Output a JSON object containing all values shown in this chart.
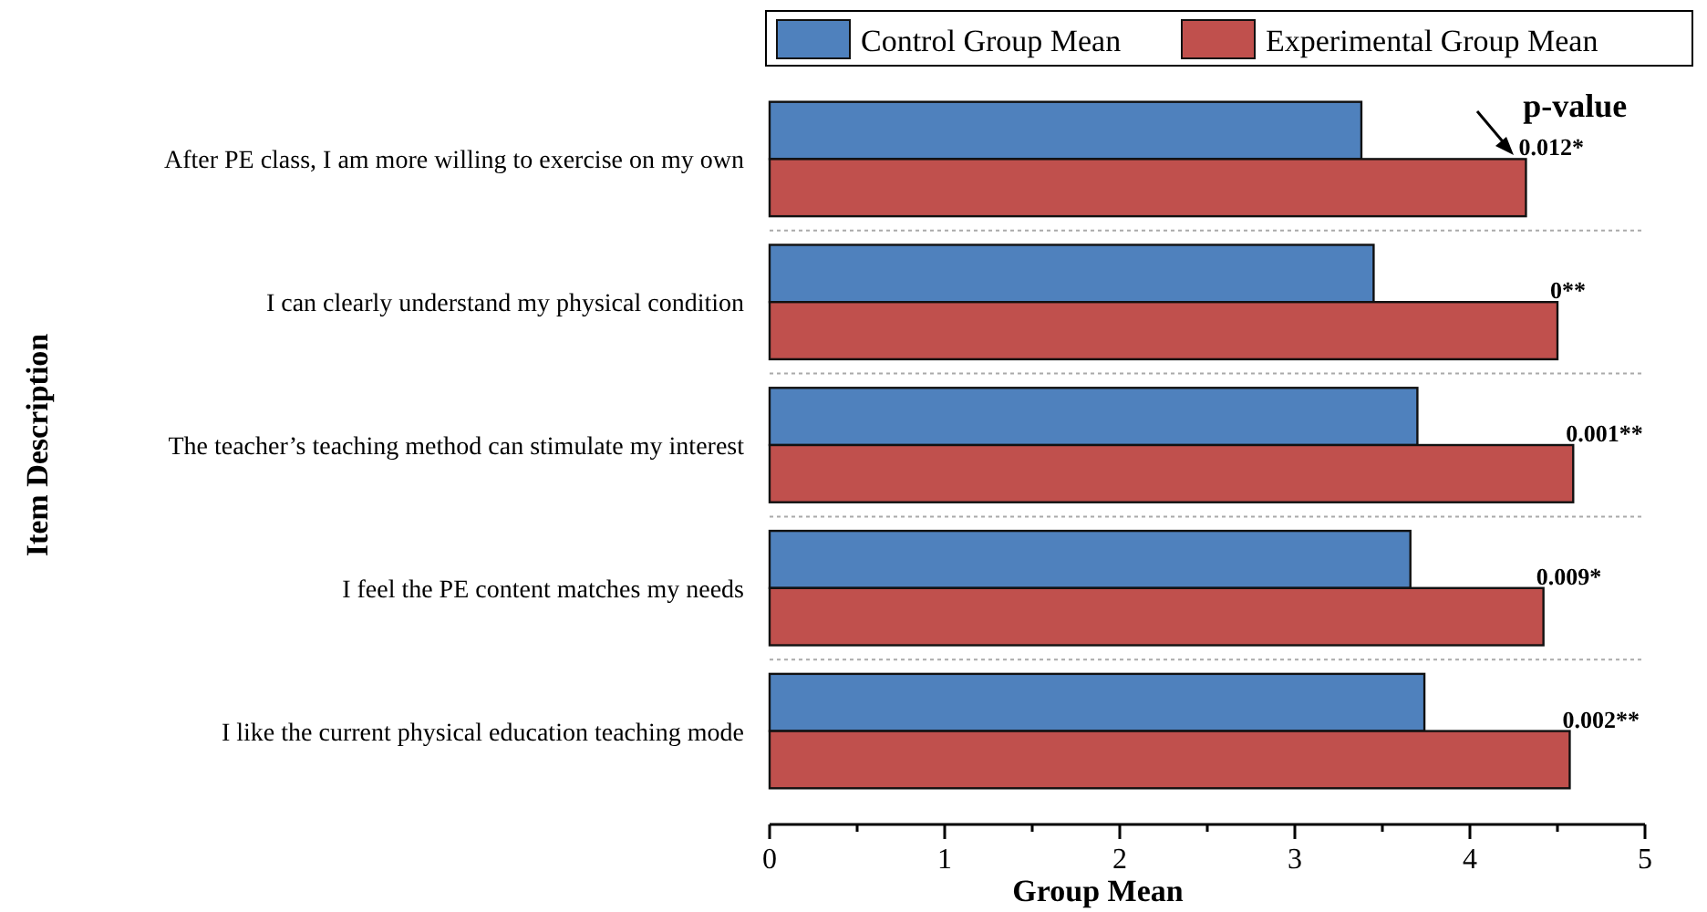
{
  "chart_data": {
    "type": "bar",
    "orientation": "horizontal",
    "xlabel": "Group Mean",
    "ylabel": "Item Description",
    "categories": [
      "After PE class, I am more willing to exercise on my own",
      "I can clearly understand my physical condition",
      "The teacher’s teaching method can stimulate my interest",
      "I feel the PE content matches my needs",
      "I like the current physical education teaching mode"
    ],
    "series": [
      {
        "name": "Control Group Mean",
        "color": "#4f81bd",
        "values": [
          3.38,
          3.45,
          3.7,
          3.66,
          3.74
        ]
      },
      {
        "name": "Experimental Group Mean",
        "color": "#c0504d",
        "values": [
          4.32,
          4.5,
          4.59,
          4.42,
          4.57
        ]
      }
    ],
    "xlim": [
      0,
      5
    ],
    "xticks": [
      0,
      {
        "value": 0.5,
        "label": null
      },
      1,
      {
        "value": 1.5,
        "label": null
      },
      2,
      {
        "value": 2.5,
        "label": null
      },
      3,
      {
        "value": 3.5,
        "label": null
      },
      4,
      {
        "value": 4.5,
        "label": null
      },
      5
    ],
    "grid": "y",
    "legend": "top right",
    "annotations": [
      "p-value",
      {
        "text": "0.012*",
        "x": 4.32,
        "y": "After PE class, I am more willing to exercise on my own"
      },
      {
        "text": "0**",
        "x": 4.5,
        "y": "I can clearly understand my physical condition"
      },
      {
        "text": "0.001**",
        "x": 4.59,
        "y": "The teacher’s teaching method can stimulate my interest"
      },
      {
        "text": "0.009*",
        "x": 4.42,
        "y": "I feel the PE content matches my needs"
      },
      {
        "text": "0.002**",
        "x": 4.57,
        "y": "I like the current physical education teaching mode"
      }
    ]
  }
}
